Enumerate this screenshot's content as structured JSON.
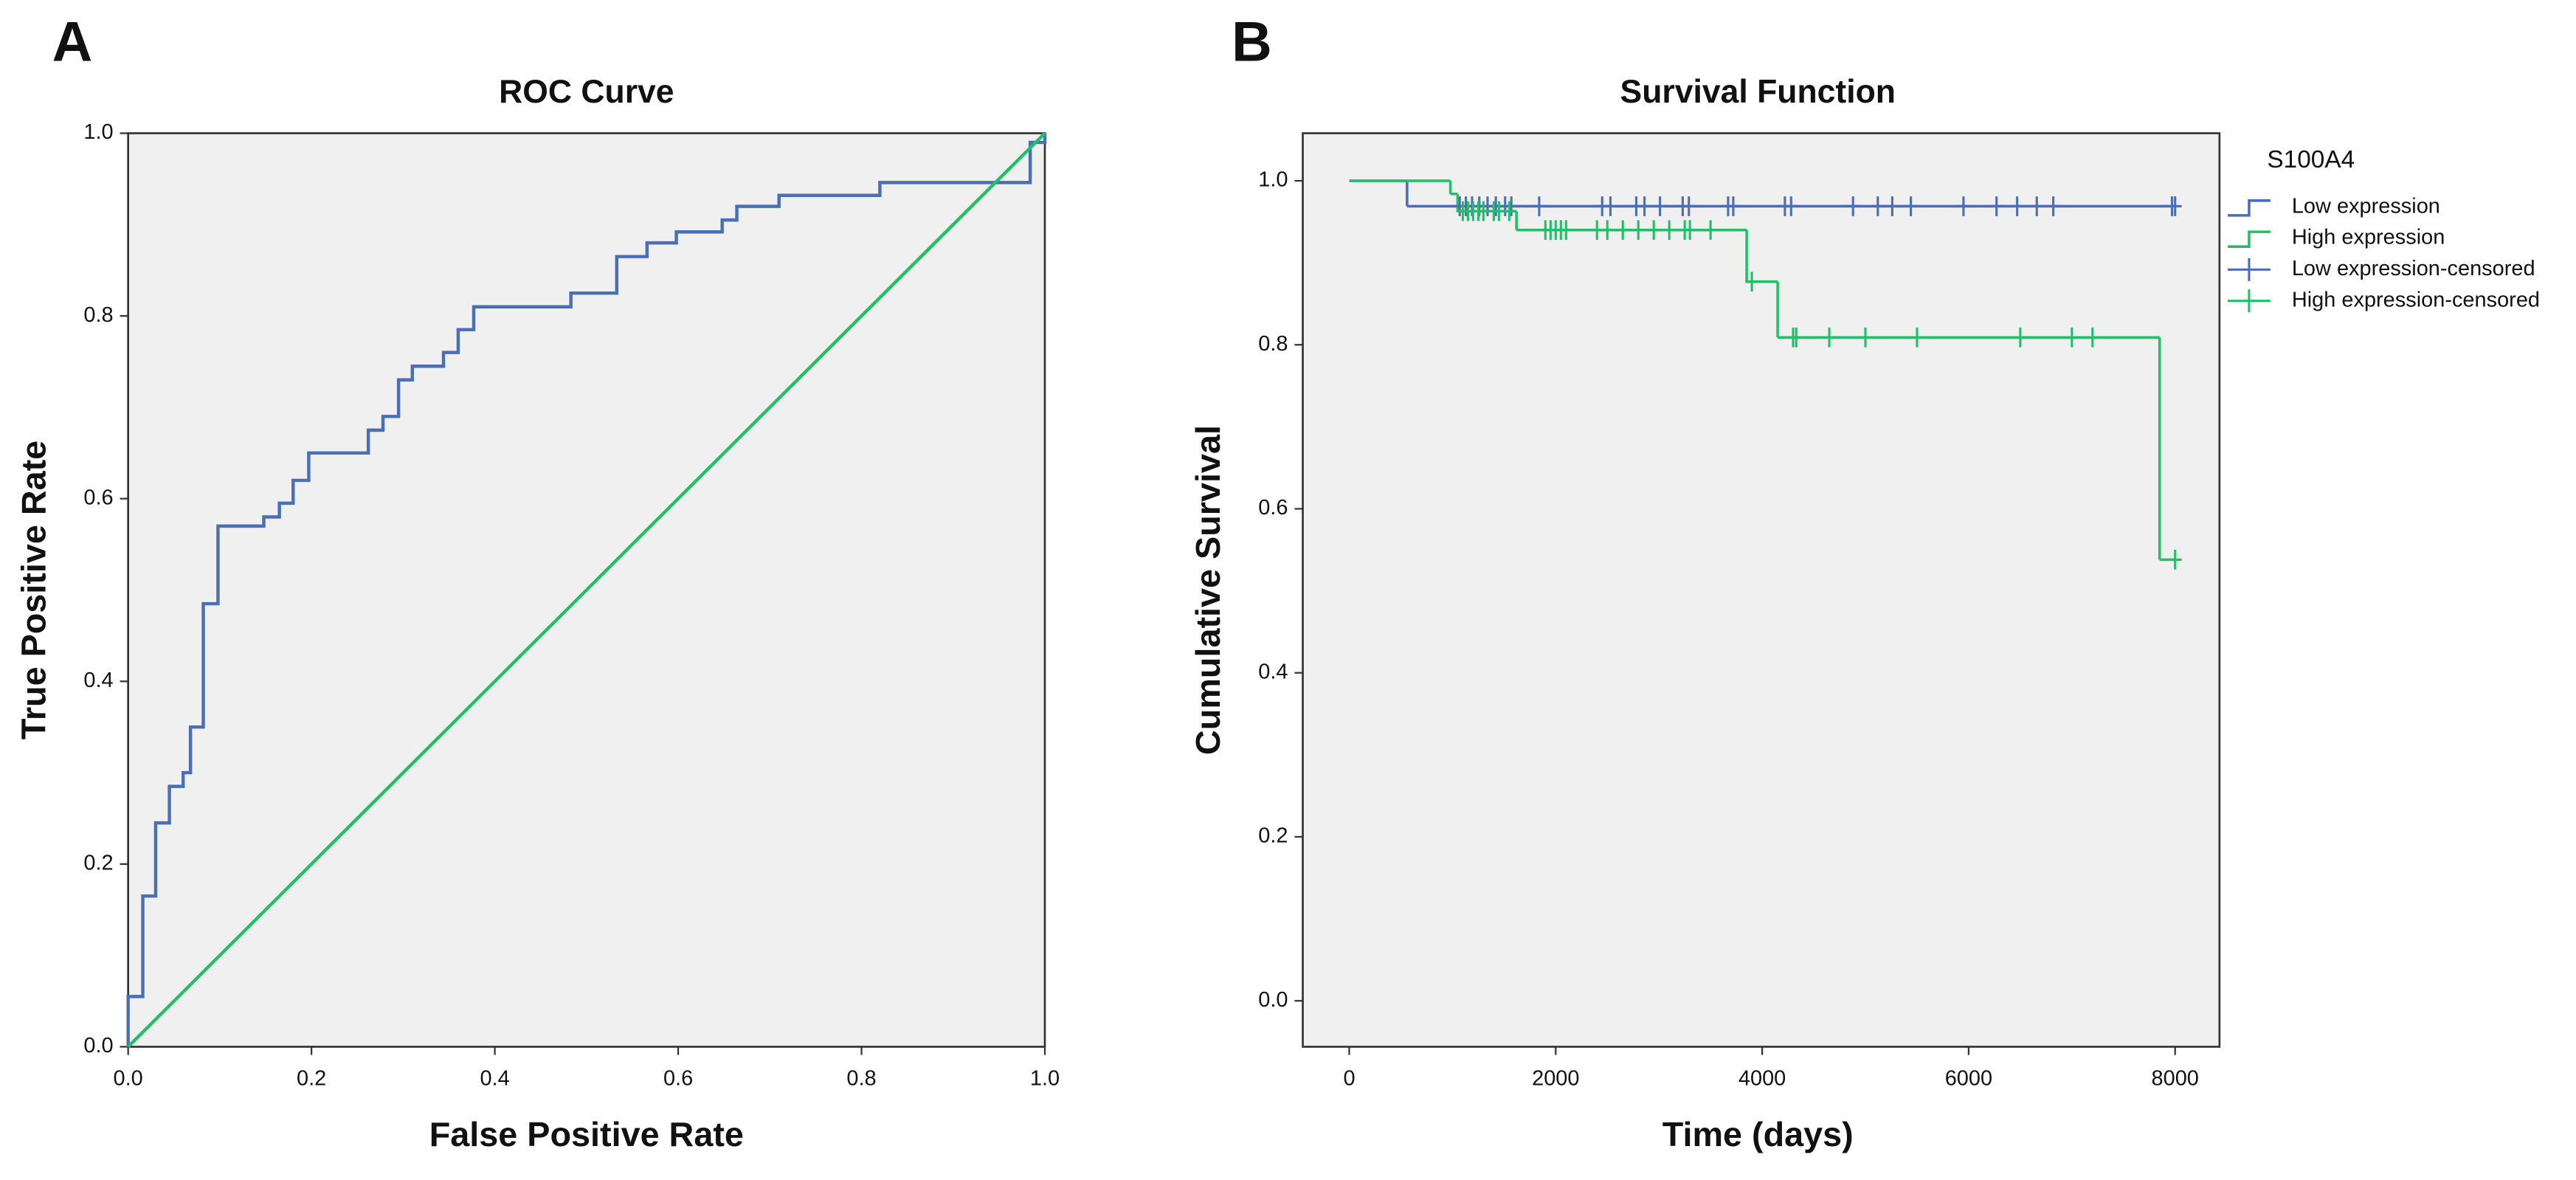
{
  "chart_data": [
    {
      "type": "line",
      "panel_label": "A",
      "title": "ROC Curve",
      "x_label": "False Positive Rate",
      "y_label": "True Positive Rate",
      "xlim": [
        0,
        1
      ],
      "ylim": [
        0,
        1
      ],
      "xticks": [
        {
          "value": 0,
          "label": "0.0"
        },
        0.2,
        0.4,
        0.6,
        0.8,
        {
          "value": 1,
          "label": "1.0"
        }
      ],
      "yticks": [
        {
          "value": 0,
          "label": "0.0"
        },
        0.2,
        0.4,
        0.6,
        0.8,
        {
          "value": 1,
          "label": "1.0"
        }
      ],
      "series": [
        {
          "color": "#4a6fb5",
          "x": [
            0,
            0,
            0.016,
            0.016,
            0.03,
            0.03,
            0.045,
            0.045,
            0.06,
            0.06,
            0.068,
            0.068,
            0.082,
            0.082,
            0.098,
            0.098,
            0.148,
            0.148,
            0.165,
            0.165,
            0.18,
            0.18,
            0.197,
            0.197,
            0.262,
            0.262,
            0.278,
            0.278,
            0.295,
            0.295,
            0.31,
            0.31,
            0.344,
            0.344,
            0.36,
            0.36,
            0.377,
            0.377,
            0.483,
            0.483,
            0.533,
            0.533,
            0.566,
            0.566,
            0.598,
            0.598,
            0.648,
            0.648,
            0.664,
            0.664,
            0.71,
            0.71,
            0.82,
            0.82,
            0.984,
            0.984,
            1,
            1
          ],
          "values": [
            0,
            0.055,
            0.055,
            0.165,
            0.165,
            0.245,
            0.245,
            0.285,
            0.285,
            0.3,
            0.3,
            0.35,
            0.35,
            0.485,
            0.485,
            0.57,
            0.57,
            0.58,
            0.58,
            0.595,
            0.595,
            0.62,
            0.62,
            0.65,
            0.65,
            0.675,
            0.675,
            0.69,
            0.69,
            0.73,
            0.73,
            0.745,
            0.745,
            0.76,
            0.76,
            0.785,
            0.785,
            0.81,
            0.81,
            0.825,
            0.825,
            0.865,
            0.865,
            0.88,
            0.88,
            0.892,
            0.892,
            0.905,
            0.905,
            0.92,
            0.92,
            0.932,
            0.932,
            0.946,
            0.946,
            0.99,
            0.99,
            1
          ]
        },
        {
          "color": "#21c067",
          "x": [
            0,
            1
          ],
          "values": [
            0,
            1
          ]
        }
      ]
    },
    {
      "type": "survival",
      "panel_label": "B",
      "title": "Survival Function",
      "x_label": "Time (days)",
      "y_label": "Cumulative Survival",
      "xlim": [
        -450,
        8430
      ],
      "ylim": [
        -0.056,
        1.058
      ],
      "xticks": [
        0,
        2000,
        4000,
        6000,
        8000
      ],
      "yticks": [
        {
          "value": 0,
          "label": "0.0"
        },
        0.2,
        0.4,
        0.6,
        0.8,
        {
          "value": 1,
          "label": "1.0"
        }
      ],
      "legend_title": "S100A4",
      "legend": "right",
      "series": [
        {
          "name": "Low expression",
          "style": "step",
          "color": "#4a6fb5",
          "x": [
            0,
            560,
            8000
          ],
          "values": [
            1,
            0.969,
            0.969
          ]
        },
        {
          "name": "High expression",
          "style": "step",
          "color": "#21c067",
          "x": [
            0,
            980,
            1050,
            1620,
            3850,
            4150,
            7850,
            8000
          ],
          "values": [
            1,
            0.984,
            0.963,
            0.94,
            0.877,
            0.809,
            0.538,
            0.538
          ]
        },
        {
          "name": "Low expression-censored",
          "style": "censored",
          "color": "#4a6fb5",
          "x": [
            1070,
            1130,
            1190,
            1260,
            1340,
            1420,
            1510,
            1570,
            1840,
            2450,
            2530,
            2780,
            2860,
            3010,
            3230,
            3290,
            3670,
            3720,
            4220,
            4280,
            4880,
            5120,
            5260,
            5440,
            5950,
            6270,
            6470,
            6660,
            6820,
            7970,
            8000
          ],
          "values": [
            0.969,
            0.969,
            0.969,
            0.969,
            0.969,
            0.969,
            0.969,
            0.969,
            0.969,
            0.969,
            0.969,
            0.969,
            0.969,
            0.969,
            0.969,
            0.969,
            0.969,
            0.969,
            0.969,
            0.969,
            0.969,
            0.969,
            0.969,
            0.969,
            0.969,
            0.969,
            0.969,
            0.969,
            0.969,
            0.969,
            0.969
          ]
        },
        {
          "name": "High expression-censored",
          "style": "censored",
          "color": "#21c067",
          "x": [
            1100,
            1150,
            1200,
            1250,
            1300,
            1400,
            1450,
            1550,
            1900,
            1950,
            2000,
            2050,
            2100,
            2400,
            2500,
            2650,
            2800,
            2950,
            3100,
            3250,
            3300,
            3500,
            3900,
            4300,
            4330,
            4650,
            5000,
            5500,
            6500,
            7000,
            7200,
            8000
          ],
          "values": [
            0.963,
            0.963,
            0.963,
            0.963,
            0.963,
            0.963,
            0.963,
            0.963,
            0.94,
            0.94,
            0.94,
            0.94,
            0.94,
            0.94,
            0.94,
            0.94,
            0.94,
            0.94,
            0.94,
            0.94,
            0.94,
            0.94,
            0.877,
            0.809,
            0.809,
            0.809,
            0.809,
            0.809,
            0.809,
            0.809,
            0.809,
            0.538
          ]
        }
      ]
    }
  ]
}
